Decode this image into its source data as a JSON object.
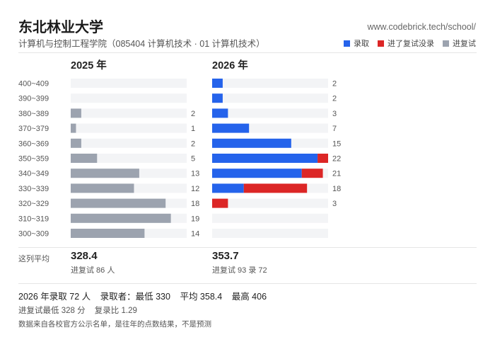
{
  "header": {
    "title": "东北林业大学",
    "subtitle": "计算机与控制工程学院（085404 计算机技术 · 01 计算机技术）",
    "site": "www.codebrick.tech/school/"
  },
  "legend": [
    {
      "label": "录取",
      "color": "#2563eb"
    },
    {
      "label": "进了复试没录",
      "color": "#dc2626"
    },
    {
      "label": "进复试",
      "color": "#9ca3af"
    }
  ],
  "chart_data": {
    "type": "bar",
    "orientation": "horizontal",
    "stacked": true,
    "categories": [
      "400~409",
      "390~399",
      "380~389",
      "370~379",
      "360~369",
      "350~359",
      "340~349",
      "330~339",
      "320~329",
      "310~319",
      "300~309"
    ],
    "panels": [
      {
        "title": "2025 年",
        "series": [
          {
            "name": "进复试",
            "color": "#9ca3af",
            "values": [
              0,
              0,
              2,
              1,
              2,
              5,
              13,
              12,
              18,
              19,
              14
            ]
          }
        ],
        "totals": [
          null,
          null,
          2,
          1,
          2,
          5,
          13,
          12,
          18,
          19,
          14
        ],
        "avg": "328.4",
        "avg_sub": "进复试 86 人",
        "max_scale": 22
      },
      {
        "title": "2026 年",
        "series": [
          {
            "name": "录取",
            "color": "#2563eb",
            "values": [
              2,
              2,
              3,
              7,
              15,
              20,
              17,
              6,
              0,
              0,
              0
            ]
          },
          {
            "name": "进了复试没录",
            "color": "#dc2626",
            "values": [
              0,
              0,
              0,
              0,
              0,
              2,
              4,
              12,
              3,
              0,
              0
            ]
          }
        ],
        "totals": [
          2,
          2,
          3,
          7,
          15,
          22,
          21,
          18,
          3,
          null,
          null
        ],
        "avg": "353.7",
        "avg_sub": "进复试 93 录 72",
        "max_scale": 22
      }
    ]
  },
  "avg_label": "这列平均",
  "summary": {
    "line1": [
      "2026 年录取 72 人",
      "录取者：最低 330",
      "平均 358.4",
      "最高 406"
    ],
    "line2": [
      "进复试最低 328 分",
      "复录比 1.29"
    ],
    "footnote": "数据来自各校官方公示名单，是往年的点数结果，不是预测"
  }
}
